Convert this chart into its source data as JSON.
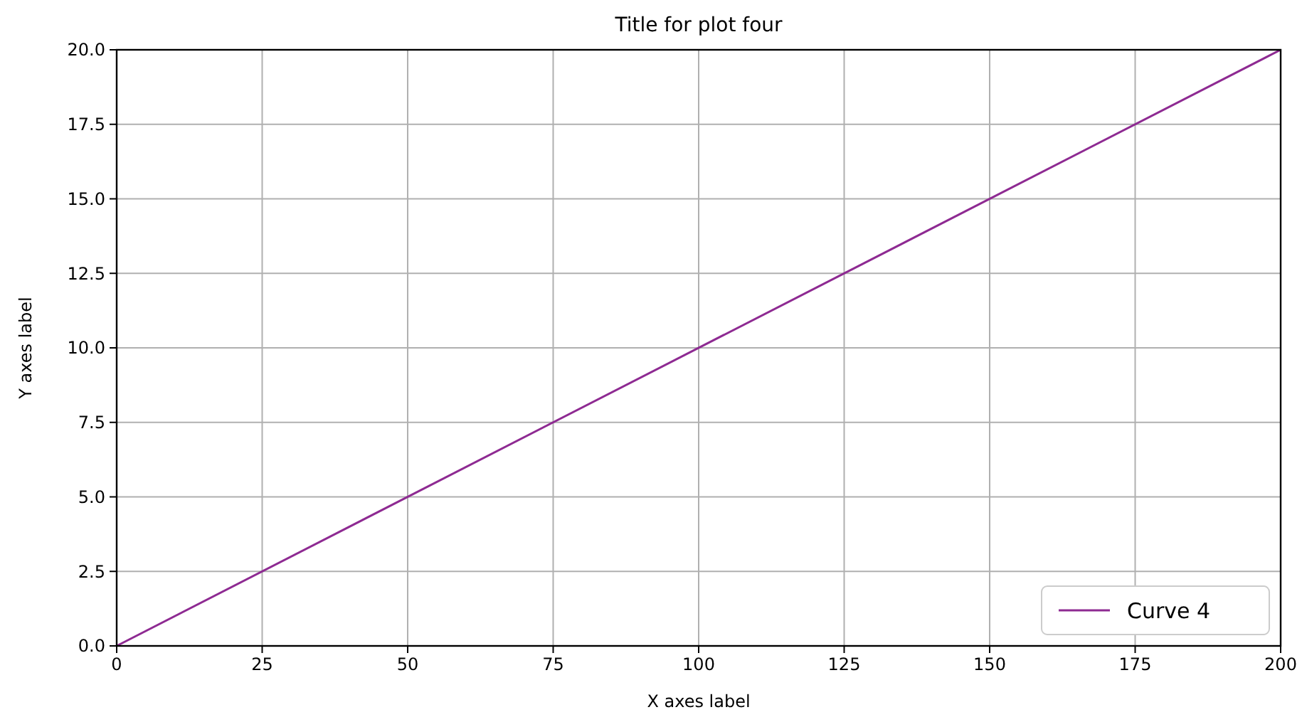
{
  "chart_data": {
    "type": "line",
    "title": "Title for plot four",
    "xlabel": "X axes label",
    "ylabel": "Y axes label",
    "x": [
      0,
      200
    ],
    "series": [
      {
        "name": "Curve 4",
        "color": "#8e2a92",
        "values": [
          0,
          20
        ]
      }
    ],
    "xlim": [
      0,
      200
    ],
    "xticks": [
      0,
      25,
      50,
      75,
      100,
      125,
      150,
      175,
      200
    ],
    "ylim": [
      0,
      20
    ],
    "yticks": [
      {
        "value": 0,
        "label": "0.0"
      },
      {
        "value": 2.5,
        "label": "2.5"
      },
      {
        "value": 5,
        "label": "5.0"
      },
      {
        "value": 7.5,
        "label": "7.5"
      },
      {
        "value": 10,
        "label": "10.0"
      },
      {
        "value": 12.5,
        "label": "12.5"
      },
      {
        "value": 15,
        "label": "15.0"
      },
      {
        "value": 17.5,
        "label": "17.5"
      },
      {
        "value": 20,
        "label": "20.0"
      }
    ],
    "grid": true,
    "legend": "bottom right"
  }
}
